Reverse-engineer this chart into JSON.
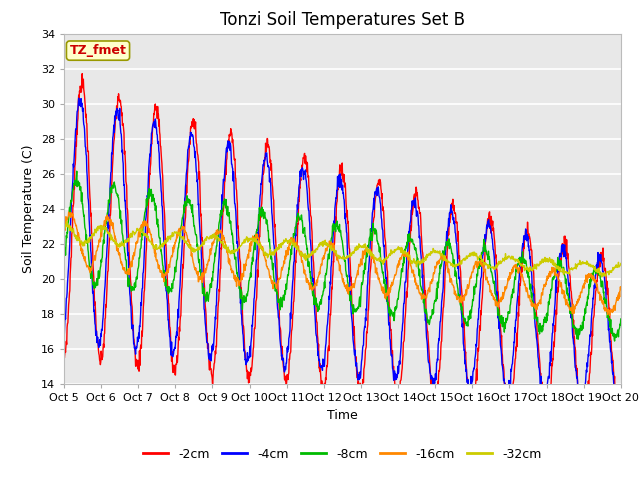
{
  "title": "Tonzi Soil Temperatures Set B",
  "xlabel": "Time",
  "ylabel": "Soil Temperature (C)",
  "ylim": [
    14,
    34
  ],
  "xlim": [
    0,
    15
  ],
  "xtick_labels": [
    "Oct 5",
    "Oct 6",
    "Oct 7",
    "Oct 8",
    "Oct 9",
    "Oct 10",
    "Oct 11",
    "Oct 12",
    "Oct 13",
    "Oct 14",
    "Oct 15",
    "Oct 16",
    "Oct 17",
    "Oct 18",
    "Oct 19",
    "Oct 20"
  ],
  "ytick_values": [
    14,
    16,
    18,
    20,
    22,
    24,
    26,
    28,
    30,
    32,
    34
  ],
  "legend_labels": [
    "-2cm",
    "-4cm",
    "-8cm",
    "-16cm",
    "-32cm"
  ],
  "line_colors": [
    "#ff0000",
    "#0000ff",
    "#00bb00",
    "#ff8800",
    "#cccc00"
  ],
  "annotation_text": "TZ_fmet",
  "annotation_color": "#cc0000",
  "annotation_box_facecolor": "#ffffcc",
  "annotation_box_edgecolor": "#999900",
  "plot_bg_color": "#e8e8e8",
  "grid_color": "#ffffff",
  "title_fontsize": 12,
  "axis_label_fontsize": 9,
  "tick_fontsize": 8,
  "legend_fontsize": 9
}
